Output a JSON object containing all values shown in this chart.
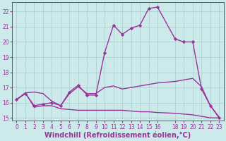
{
  "background_color": "#cceaea",
  "grid_color": "#aacccc",
  "line_color": "#993399",
  "xlim": [
    -0.5,
    23.5
  ],
  "ylim": [
    14.8,
    22.6
  ],
  "yticks": [
    15,
    16,
    17,
    18,
    19,
    20,
    21,
    22
  ],
  "xticks": [
    0,
    1,
    2,
    3,
    4,
    5,
    6,
    7,
    8,
    9,
    10,
    11,
    12,
    13,
    14,
    15,
    16,
    18,
    19,
    20,
    21,
    22,
    23
  ],
  "xlabel": "Windchill (Refroidissement éolien,°C)",
  "series": [
    {
      "x": [
        0,
        1,
        2,
        3,
        4,
        5,
        6,
        7,
        8,
        9,
        10,
        11,
        12,
        13,
        14,
        15,
        16,
        18,
        19,
        20,
        21,
        22,
        23
      ],
      "y": [
        16.2,
        16.6,
        15.8,
        15.9,
        16.0,
        15.8,
        16.7,
        17.15,
        16.5,
        16.5,
        19.3,
        21.1,
        20.5,
        20.9,
        21.1,
        22.2,
        22.3,
        20.2,
        20.0,
        20.0,
        16.9,
        15.8,
        15.0
      ],
      "marker": "D",
      "markersize": 2.2,
      "linewidth": 1.0
    },
    {
      "x": [
        0,
        1,
        2,
        3,
        4,
        5,
        6,
        7,
        8,
        9,
        10,
        11,
        12,
        13,
        14,
        15,
        16,
        18,
        19,
        20,
        21,
        22,
        23
      ],
      "y": [
        16.2,
        16.65,
        16.7,
        16.6,
        16.1,
        15.8,
        16.6,
        17.05,
        16.6,
        16.6,
        17.0,
        17.1,
        16.9,
        17.0,
        17.1,
        17.2,
        17.3,
        17.4,
        17.5,
        17.6,
        17.05,
        15.8,
        15.05
      ],
      "marker": null,
      "linewidth": 1.0
    },
    {
      "x": [
        0,
        1,
        2,
        3,
        4,
        5,
        6,
        7,
        8,
        9,
        10,
        11,
        12,
        13,
        14,
        15,
        16,
        18,
        19,
        20,
        21,
        22,
        23
      ],
      "y": [
        16.2,
        16.65,
        15.7,
        15.8,
        15.8,
        15.6,
        15.55,
        15.5,
        15.5,
        15.5,
        15.5,
        15.5,
        15.5,
        15.45,
        15.4,
        15.4,
        15.35,
        15.3,
        15.25,
        15.2,
        15.1,
        15.0,
        15.0
      ],
      "marker": null,
      "linewidth": 1.0
    }
  ],
  "font_size_tick": 5.5,
  "font_size_label": 7.0
}
